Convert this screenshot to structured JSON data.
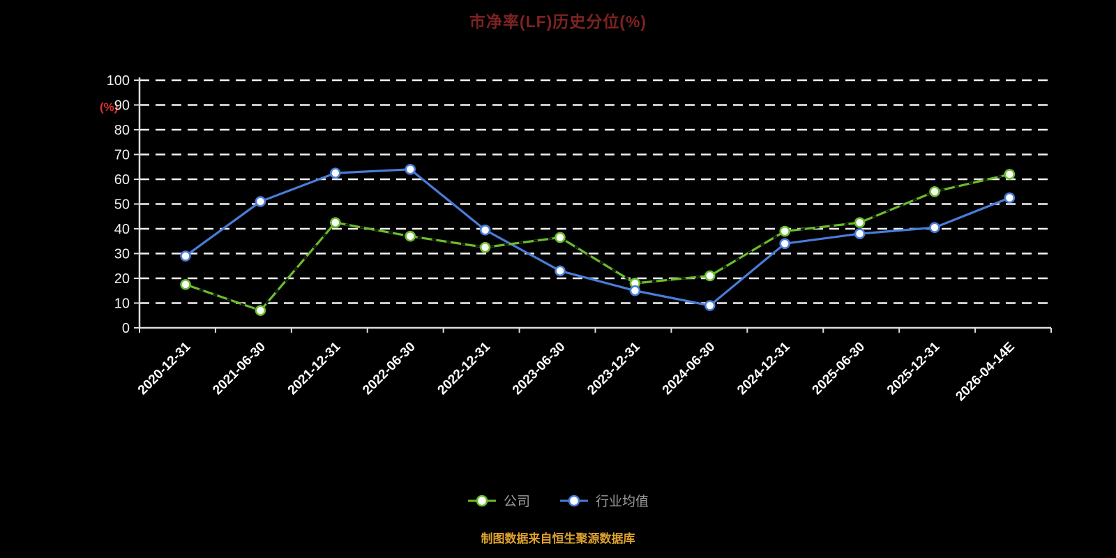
{
  "title": "市净率(LF)历史分位(%)",
  "ylabel": "(%)",
  "footer": "制图数据来自恒生聚源数据库",
  "chart_data": {
    "type": "line",
    "title": "市净率(LF)历史分位(%)",
    "ylabel": "(%)",
    "categories": [
      "2020-12-31",
      "2021-06-30",
      "2021-12-31",
      "2022-06-30",
      "2022-12-31",
      "2023-06-30",
      "2023-12-31",
      "2024-06-30",
      "2024-12-31",
      "2025-06-30",
      "2025-12-31",
      "2026-04-14E"
    ],
    "series": [
      {
        "name": "公司",
        "color": "#6abd2d",
        "line_style": "dash-dot",
        "values": [
          17.5,
          7,
          42.5,
          37,
          32.5,
          36.5,
          18,
          21,
          39,
          42.5,
          55,
          62
        ]
      },
      {
        "name": "行业均值",
        "color": "#4a7cd9",
        "line_style": "solid",
        "values": [
          29,
          51,
          62.5,
          64,
          39.5,
          23,
          15,
          9,
          34,
          38,
          40.5,
          52.5
        ]
      }
    ],
    "ylim": [
      0,
      100
    ],
    "yticks": [
      0,
      10,
      20,
      30,
      40,
      50,
      60,
      70,
      80,
      90,
      100
    ],
    "grid": "dashed-white-horizontal",
    "legend_position": "bottom",
    "background": "#000000",
    "marker": "white-filled-circle"
  }
}
